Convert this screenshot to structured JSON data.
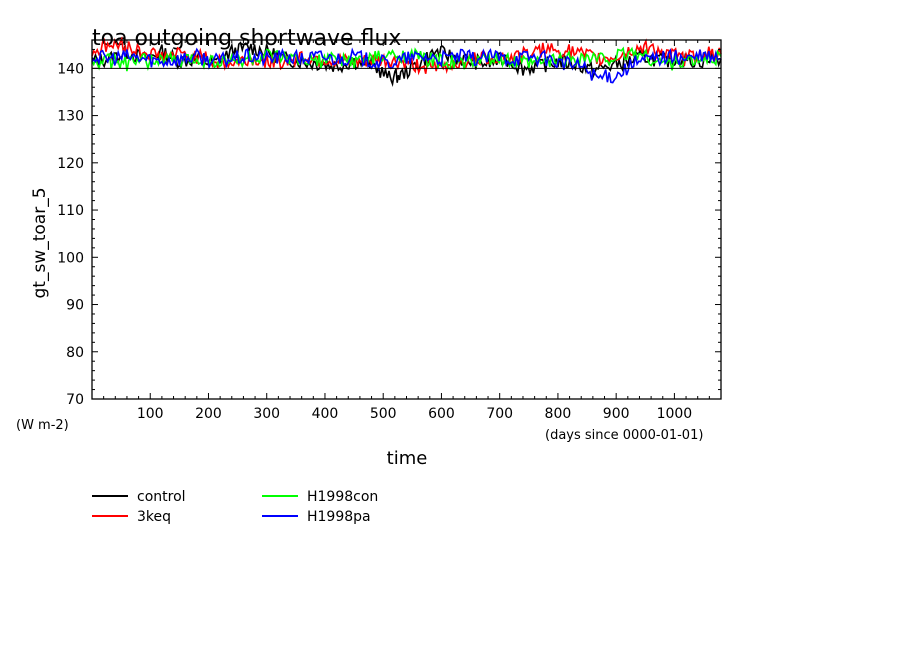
{
  "chart_data": {
    "type": "line",
    "title": "toa outgoing shortwave flux",
    "xlabel": "time",
    "x_units": "(days since 0000-01-01)",
    "ylabel": "gt_sw_toar_5",
    "y_units": "(W m-2)",
    "xlim": [
      0,
      1080
    ],
    "ylim": [
      70,
      146
    ],
    "xticks": [
      100,
      200,
      300,
      400,
      500,
      600,
      700,
      800,
      900,
      1000
    ],
    "yticks": [
      70,
      80,
      90,
      100,
      110,
      120,
      130,
      140
    ],
    "reference_line": 140,
    "series": [
      {
        "name": "control",
        "color": "#000000",
        "x": [
          0,
          30,
          60,
          90,
          120,
          150,
          180,
          210,
          240,
          270,
          300,
          330,
          360,
          390,
          420,
          450,
          480,
          510,
          530,
          560,
          590,
          620,
          650,
          680,
          710,
          740,
          770,
          800,
          830,
          860,
          890,
          920,
          950,
          980,
          1010,
          1040,
          1080
        ],
        "y": [
          141.5,
          142.0,
          143.5,
          142.0,
          143.5,
          141.5,
          142.0,
          141.0,
          143.5,
          144.5,
          143.5,
          142.0,
          141.5,
          141.0,
          140.5,
          141.5,
          141.0,
          138.0,
          138.5,
          141.0,
          143.5,
          142.5,
          141.5,
          141.0,
          142.0,
          140.0,
          140.5,
          141.5,
          141.0,
          139.5,
          140.5,
          141.5,
          142.5,
          141.5,
          142.0,
          141.5,
          142.0
        ]
      },
      {
        "name": "3keq",
        "color": "#ff0000",
        "x": [
          0,
          30,
          60,
          90,
          120,
          150,
          180,
          210,
          240,
          270,
          300,
          330,
          360,
          390,
          420,
          450,
          480,
          510,
          540,
          570,
          600,
          630,
          660,
          690,
          720,
          750,
          780,
          810,
          840,
          870,
          900,
          930,
          960,
          990,
          1020,
          1050,
          1080
        ],
        "y": [
          143.5,
          145.0,
          144.5,
          143.5,
          142.5,
          143.0,
          142.5,
          141.5,
          141.0,
          142.0,
          141.5,
          141.5,
          142.5,
          142.0,
          141.5,
          141.0,
          141.5,
          141.5,
          141.0,
          140.5,
          140.0,
          141.5,
          142.0,
          142.5,
          142.5,
          143.0,
          144.0,
          144.0,
          143.0,
          142.0,
          142.5,
          144.0,
          144.5,
          143.0,
          142.0,
          143.5,
          143.0
        ]
      },
      {
        "name": "H1998con",
        "color": "#00ff00",
        "x": [
          0,
          30,
          60,
          90,
          120,
          150,
          180,
          210,
          240,
          270,
          300,
          330,
          360,
          390,
          420,
          450,
          480,
          510,
          540,
          570,
          600,
          630,
          660,
          690,
          720,
          750,
          780,
          810,
          840,
          870,
          900,
          930,
          960,
          990,
          1020,
          1050,
          1080
        ],
        "y": [
          141.0,
          141.5,
          141.0,
          141.5,
          142.0,
          141.5,
          142.0,
          141.5,
          141.5,
          142.0,
          142.5,
          142.0,
          141.5,
          141.5,
          142.0,
          141.5,
          142.0,
          142.5,
          143.0,
          142.0,
          141.5,
          141.0,
          141.5,
          142.0,
          141.5,
          141.0,
          141.5,
          142.0,
          142.5,
          142.0,
          142.5,
          143.5,
          142.0,
          141.0,
          141.5,
          142.0,
          142.5
        ]
      },
      {
        "name": "H1998pa",
        "color": "#0000ff",
        "x": [
          0,
          30,
          60,
          90,
          120,
          150,
          180,
          210,
          240,
          270,
          300,
          330,
          360,
          390,
          420,
          450,
          480,
          510,
          540,
          570,
          600,
          630,
          660,
          690,
          720,
          750,
          780,
          810,
          840,
          870,
          900,
          930,
          960,
          990,
          1020,
          1050,
          1080
        ],
        "y": [
          142.5,
          142.0,
          142.5,
          142.0,
          141.5,
          142.0,
          142.5,
          141.5,
          142.0,
          142.5,
          142.0,
          142.5,
          142.0,
          142.5,
          142.0,
          142.5,
          141.5,
          141.0,
          142.0,
          142.5,
          142.0,
          142.5,
          142.0,
          142.5,
          142.0,
          142.5,
          142.0,
          141.0,
          140.5,
          138.0,
          138.5,
          141.0,
          142.0,
          142.5,
          142.0,
          142.5,
          142.0
        ]
      }
    ]
  },
  "legend": [
    {
      "name": "control",
      "color": "#000000"
    },
    {
      "name": "3keq",
      "color": "#ff0000"
    },
    {
      "name": "H1998con",
      "color": "#00ff00"
    },
    {
      "name": "H1998pa",
      "color": "#0000ff"
    }
  ]
}
